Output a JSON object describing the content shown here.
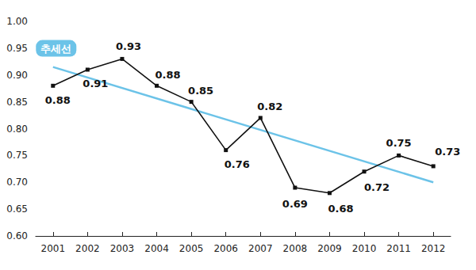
{
  "chart_data": {
    "type": "line",
    "categories": [
      "2001",
      "2002",
      "2003",
      "2004",
      "2005",
      "2006",
      "2007",
      "2008",
      "2009",
      "2010",
      "2011",
      "2012"
    ],
    "series": [
      {
        "values": [
          0.88,
          0.91,
          0.93,
          0.88,
          0.85,
          0.76,
          0.82,
          0.69,
          0.68,
          0.72,
          0.75,
          0.73
        ],
        "color": "#111111",
        "marker": "square",
        "line_style": "solid",
        "data_labels": true
      },
      {
        "name": "추세선",
        "values": [
          0.915,
          null,
          null,
          null,
          null,
          null,
          null,
          null,
          null,
          null,
          null,
          0.7
        ],
        "color": "#6cc3e8",
        "marker": "none",
        "line_style": "solid"
      }
    ],
    "ylim": [
      0.6,
      1.0
    ],
    "yticks": [
      {
        "value": 0.6,
        "label": "0.60"
      },
      {
        "value": 0.65,
        "label": "0.65"
      },
      {
        "value": 0.7,
        "label": "0.70"
      },
      {
        "value": 0.75,
        "label": "0.75"
      },
      {
        "value": 0.8,
        "label": "0.80"
      },
      {
        "value": 0.85,
        "label": "0.85"
      },
      {
        "value": 0.9,
        "label": "0.90"
      },
      {
        "value": 0.95,
        "label": "0.95"
      },
      {
        "value": 1.0,
        "label": "1.00"
      }
    ],
    "grid": false,
    "legend": "none"
  }
}
